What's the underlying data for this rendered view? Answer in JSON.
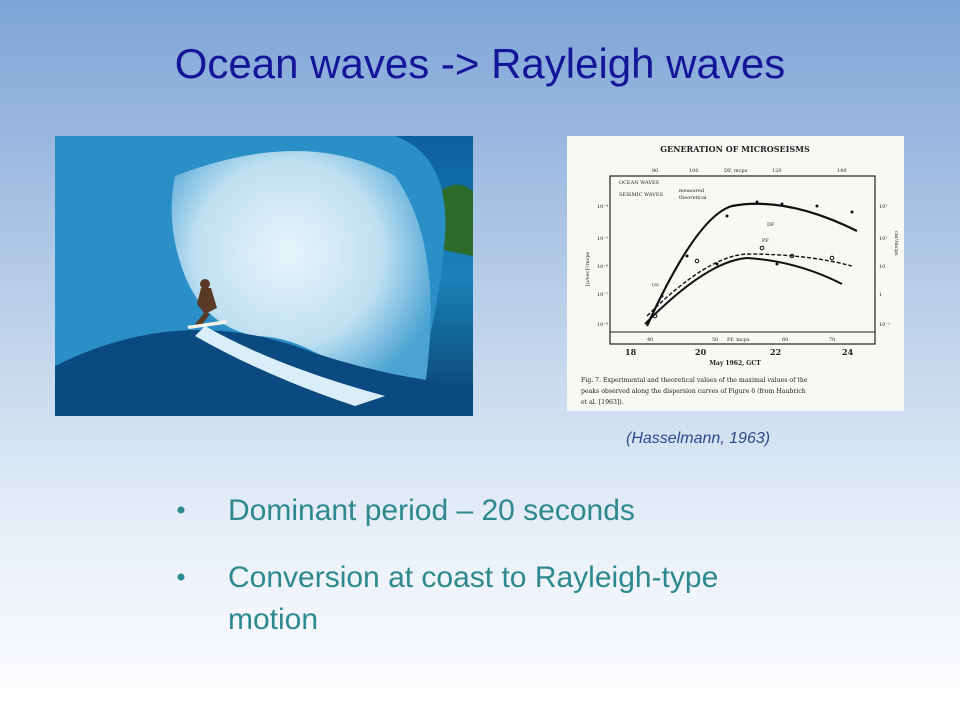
{
  "title": "Ocean waves -> Rayleigh waves",
  "figure": {
    "heading": "GENERATION OF MICROSEISMS",
    "top_axis": [
      "80",
      "100",
      "DF, mcps",
      "120",
      "140"
    ],
    "legend": [
      "OCEAN WAVES",
      "SEISMIC WAVES",
      "measured",
      "theoretical"
    ],
    "curve_labels": [
      "DF",
      "PF",
      "(a)"
    ],
    "left_axis": [
      "10⁻⁴",
      "10⁻⁵",
      "10⁻⁶",
      "10⁻⁷",
      "10⁻⁸"
    ],
    "left_label": "[μ/sec]²/mcps",
    "right_axis": [
      "10³",
      "10²",
      "10",
      "1",
      "10⁻¹"
    ],
    "right_label": "cm²/mcps",
    "inner_bottom_axis": [
      "40",
      "50",
      "PF, mcps",
      "60",
      "70"
    ],
    "bottom_axis": [
      "18",
      "20",
      "22",
      "24"
    ],
    "bottom_label": "May 1962, GCT",
    "caption": [
      "Fig. 7.  Experimental and theoretical values of the maximal values of the",
      "peaks observed along the dispersion curves of Figure 6 (from Haubrich",
      "et al. [1963])."
    ]
  },
  "citation": "(Hasselmann, 1963)",
  "bullets": [
    "Dominant period – 20 seconds",
    "Conversion at coast to Rayleigh-type motion"
  ]
}
